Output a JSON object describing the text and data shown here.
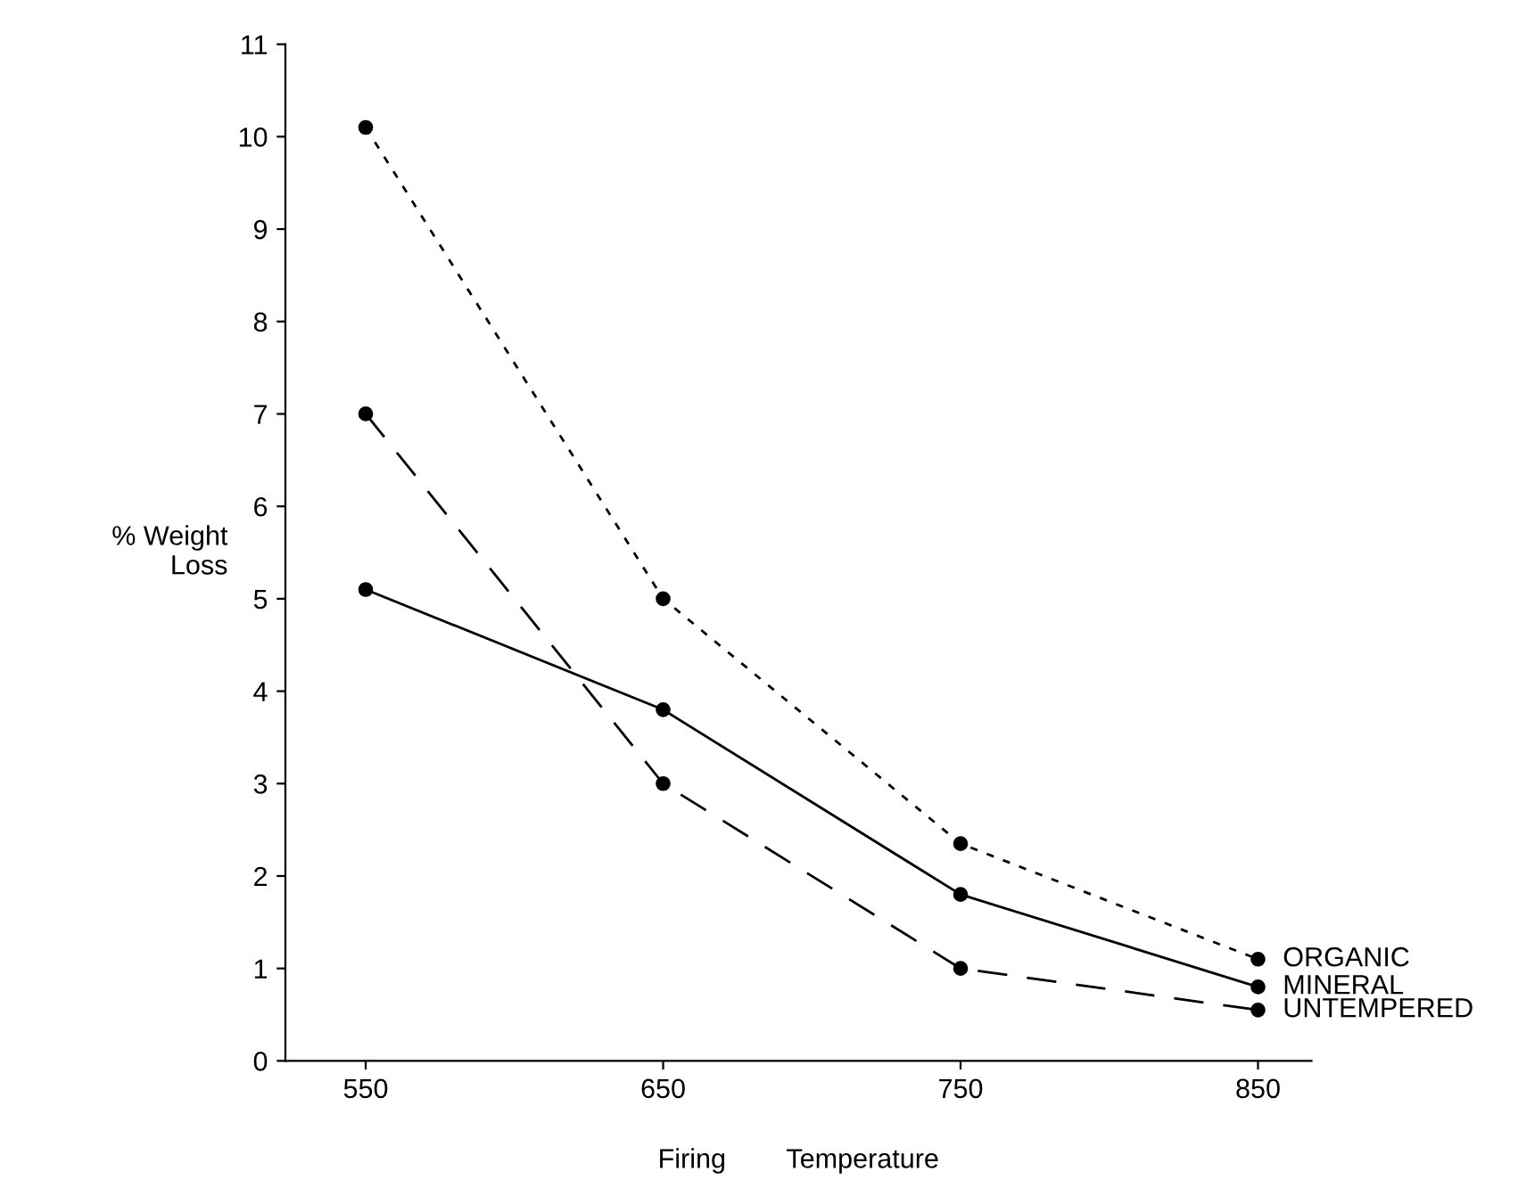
{
  "chart_data": {
    "type": "line",
    "xlabel": "Firing        Temperature",
    "ylabel": "% Weight\nLoss",
    "x": [
      550,
      650,
      750,
      850
    ],
    "series": [
      {
        "name": "ORGANIC",
        "color": "#000000",
        "line_style": "dotted",
        "values": [
          10.1,
          5.0,
          2.35,
          1.1
        ]
      },
      {
        "name": "MINERAL",
        "color": "#000000",
        "line_style": "solid",
        "values": [
          5.1,
          3.8,
          1.8,
          0.8
        ]
      },
      {
        "name": "UNTEMPERED",
        "color": "#000000",
        "line_style": "dashed",
        "values": [
          7.0,
          3.0,
          1.0,
          0.55
        ]
      }
    ],
    "xlim": [
      523,
      868
    ],
    "xticks": [
      550,
      650,
      750,
      850
    ],
    "ylim": [
      0,
      11
    ],
    "yticks": [
      0,
      1,
      2,
      3,
      4,
      5,
      6,
      7,
      8,
      9,
      10,
      11
    ],
    "marker": "circle",
    "grid": false,
    "legend": false
  }
}
